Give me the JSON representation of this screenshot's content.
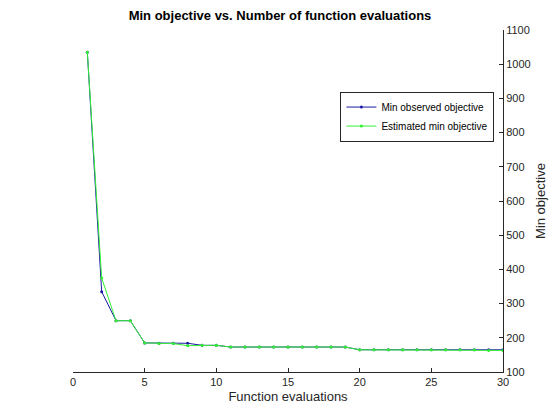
{
  "chart_data": {
    "type": "line",
    "title": "Min objective vs. Number of function evaluations",
    "x_label": "Function evaluations",
    "y_label": "Min objective",
    "x": [
      1,
      2,
      3,
      4,
      5,
      6,
      7,
      8,
      9,
      10,
      11,
      12,
      13,
      14,
      15,
      16,
      17,
      18,
      19,
      20,
      21,
      22,
      23,
      24,
      25,
      26,
      27,
      28,
      29,
      30
    ],
    "series": [
      {
        "name": "Min observed objective",
        "color": "#1a1aa6",
        "marker": "point",
        "line_style": "solid",
        "values": [
          1035,
          335,
          250,
          250,
          185,
          184,
          184,
          184,
          178,
          178,
          173,
          173,
          173,
          173,
          173,
          173,
          173,
          173,
          173,
          165,
          165,
          165,
          165,
          165,
          165,
          165,
          165,
          165,
          165,
          165
        ]
      },
      {
        "name": "Estimated min objective",
        "color": "#33ee33",
        "marker": "point",
        "line_style": "solid",
        "values": [
          1035,
          375,
          250,
          250,
          185,
          183,
          183,
          177,
          178,
          178,
          173,
          173,
          173,
          173,
          173,
          173,
          173,
          173,
          173,
          165,
          165,
          165,
          165,
          165,
          165,
          165,
          165,
          165,
          163,
          163
        ]
      }
    ],
    "xlim": [
      0,
      30
    ],
    "xticks": [
      0,
      5,
      10,
      15,
      20,
      25,
      30
    ],
    "ylim": [
      100,
      1100
    ],
    "yticks": [
      100,
      200,
      300,
      400,
      500,
      600,
      700,
      800,
      900,
      1000,
      1100
    ],
    "grid": false,
    "legend": "northeast"
  }
}
